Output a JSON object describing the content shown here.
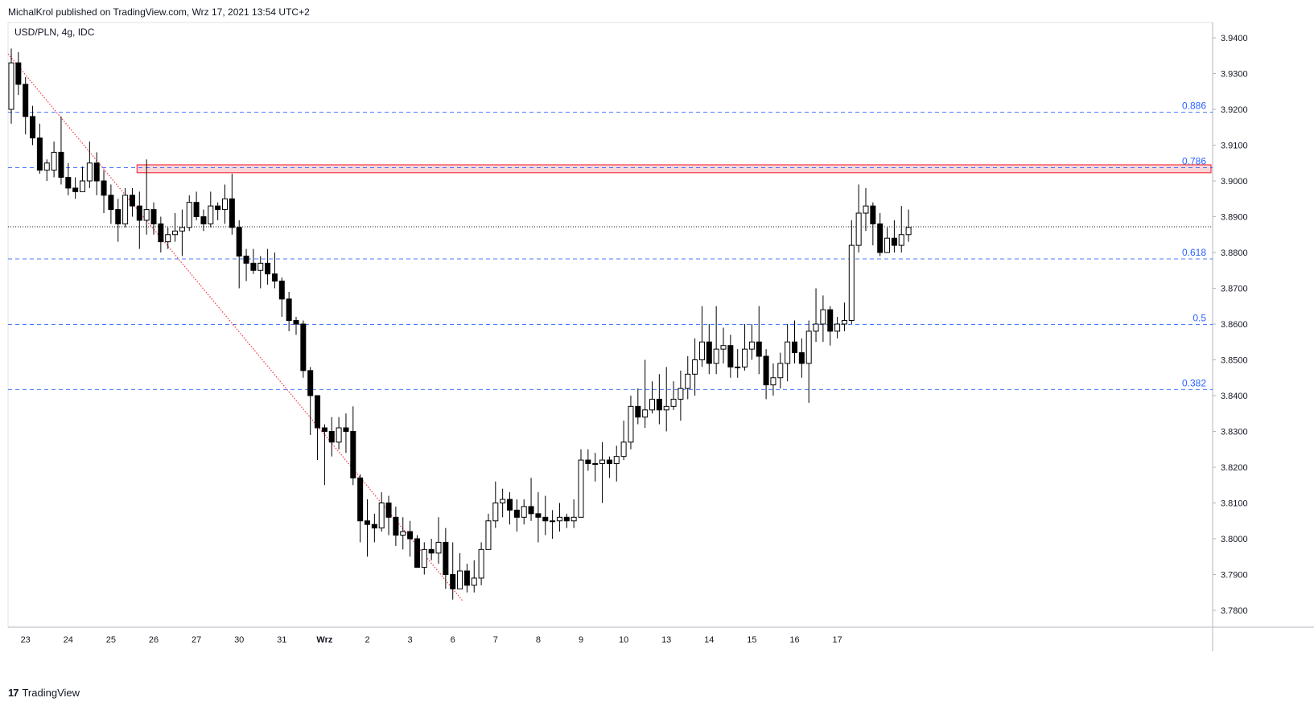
{
  "header": {
    "published": "MichalKrol published on TradingView.com, Wrz 17, 2021 13:54 UTC+2"
  },
  "footer": {
    "brand": "TradingView",
    "logo_text": "17"
  },
  "colors": {
    "up_body": "#ffffff",
    "down_body": "#000000",
    "wick": "#000000",
    "fib": "#2962ff",
    "zone": "#f23645",
    "trend": "#f23645"
  },
  "chart_data": {
    "type": "candlestick",
    "title": "USD/PLN, 4g, IDC",
    "ylim": [
      3.776,
      3.945
    ],
    "y_ticks": [
      "3.9400",
      "3.9300",
      "3.9200",
      "3.9100",
      "3.9000",
      "3.8900",
      "3.8800",
      "3.8700",
      "3.8600",
      "3.8500",
      "3.8400",
      "3.8300",
      "3.8200",
      "3.8100",
      "3.8000",
      "3.7900",
      "3.7800"
    ],
    "x_ticks": [
      {
        "label": "23",
        "i": 2
      },
      {
        "label": "24",
        "i": 8
      },
      {
        "label": "25",
        "i": 14
      },
      {
        "label": "26",
        "i": 20
      },
      {
        "label": "27",
        "i": 26
      },
      {
        "label": "30",
        "i": 32
      },
      {
        "label": "31",
        "i": 38
      },
      {
        "label": "Wrz",
        "i": 44
      },
      {
        "label": "2",
        "i": 50
      },
      {
        "label": "3",
        "i": 56
      },
      {
        "label": "6",
        "i": 62
      },
      {
        "label": "7",
        "i": 68
      },
      {
        "label": "8",
        "i": 74
      },
      {
        "label": "9",
        "i": 80
      },
      {
        "label": "10",
        "i": 86
      },
      {
        "label": "13",
        "i": 92
      },
      {
        "label": "14",
        "i": 98
      },
      {
        "label": "15",
        "i": 104
      },
      {
        "label": "16",
        "i": 110
      },
      {
        "label": "17",
        "i": 116
      }
    ],
    "fib_levels": [
      {
        "label": "0.886",
        "value": 3.9192
      },
      {
        "label": "0.786",
        "value": 3.9037
      },
      {
        "label": "0.618",
        "value": 3.8782
      },
      {
        "label": "0.5",
        "value": 3.8599
      },
      {
        "label": "0.382",
        "value": 3.8417
      }
    ],
    "last_price": 3.8872,
    "resistance_zone": {
      "top": 3.9045,
      "bottom": 3.9023,
      "from_i": 18
    },
    "trendline": {
      "from": [
        0,
        3.9355
      ],
      "to": [
        63,
        3.7825
      ]
    },
    "candles": [
      [
        3.92,
        3.933,
        3.937,
        3.916
      ],
      [
        3.933,
        3.927,
        3.936,
        3.924
      ],
      [
        3.927,
        3.918,
        3.929,
        3.913
      ],
      [
        3.918,
        3.912,
        3.921,
        3.91
      ],
      [
        3.912,
        3.903,
        3.916,
        3.902
      ],
      [
        3.903,
        3.905,
        3.906,
        3.9
      ],
      [
        3.903,
        3.908,
        3.911,
        3.901
      ],
      [
        3.908,
        3.901,
        3.918,
        3.899
      ],
      [
        3.901,
        3.898,
        3.905,
        3.896
      ],
      [
        3.898,
        3.897,
        3.901,
        3.895
      ],
      [
        3.897,
        3.9,
        3.904,
        3.897
      ],
      [
        3.9,
        3.905,
        3.911,
        3.898
      ],
      [
        3.905,
        3.9,
        3.908,
        3.896
      ],
      [
        3.9,
        3.896,
        3.903,
        3.891
      ],
      [
        3.896,
        3.892,
        3.899,
        3.888
      ],
      [
        3.892,
        3.888,
        3.895,
        3.883
      ],
      [
        3.888,
        3.896,
        3.898,
        3.887
      ],
      [
        3.896,
        3.893,
        3.898,
        3.89
      ],
      [
        3.893,
        3.889,
        3.897,
        3.881
      ],
      [
        3.889,
        3.892,
        3.906,
        3.885
      ],
      [
        3.892,
        3.888,
        3.894,
        3.885
      ],
      [
        3.888,
        3.883,
        3.89,
        3.88
      ],
      [
        3.883,
        3.885,
        3.887,
        3.881
      ],
      [
        3.885,
        3.886,
        3.891,
        3.883
      ],
      [
        3.886,
        3.887,
        3.892,
        3.879
      ],
      [
        3.887,
        3.894,
        3.896,
        3.886
      ],
      [
        3.894,
        3.89,
        3.897,
        3.889
      ],
      [
        3.89,
        3.888,
        3.892,
        3.886
      ],
      [
        3.888,
        3.893,
        3.897,
        3.887
      ],
      [
        3.893,
        3.892,
        3.894,
        3.889
      ],
      [
        3.892,
        3.895,
        3.899,
        3.888
      ],
      [
        3.895,
        3.887,
        3.902,
        3.885
      ],
      [
        3.887,
        3.879,
        3.889,
        3.87
      ],
      [
        3.879,
        3.877,
        3.881,
        3.872
      ],
      [
        3.877,
        3.875,
        3.881,
        3.874
      ],
      [
        3.875,
        3.877,
        3.879,
        3.87
      ],
      [
        3.877,
        3.874,
        3.881,
        3.871
      ],
      [
        3.874,
        3.872,
        3.88,
        3.87
      ],
      [
        3.872,
        3.867,
        3.873,
        3.862
      ],
      [
        3.867,
        3.861,
        3.869,
        3.858
      ],
      [
        3.861,
        3.86,
        3.862,
        3.857
      ],
      [
        3.86,
        3.847,
        3.861,
        3.845
      ],
      [
        3.847,
        3.84,
        3.848,
        3.829
      ],
      [
        3.84,
        3.831,
        3.84,
        3.822
      ],
      [
        3.831,
        3.83,
        3.832,
        3.815
      ],
      [
        3.83,
        3.827,
        3.834,
        3.823
      ],
      [
        3.827,
        3.831,
        3.834,
        3.825
      ],
      [
        3.831,
        3.83,
        3.835,
        3.824
      ],
      [
        3.83,
        3.817,
        3.837,
        3.815
      ],
      [
        3.817,
        3.805,
        3.818,
        3.799
      ],
      [
        3.805,
        3.804,
        3.811,
        3.795
      ],
      [
        3.804,
        3.803,
        3.807,
        3.799
      ],
      [
        3.803,
        3.81,
        3.813,
        3.802
      ],
      [
        3.81,
        3.806,
        3.812,
        3.801
      ],
      [
        3.806,
        3.801,
        3.809,
        3.798
      ],
      [
        3.801,
        3.802,
        3.806,
        3.797
      ],
      [
        3.802,
        3.8,
        3.805,
        3.795
      ],
      [
        3.8,
        3.792,
        3.801,
        3.792
      ],
      [
        3.792,
        3.797,
        3.799,
        3.79
      ],
      [
        3.797,
        3.796,
        3.8,
        3.794
      ],
      [
        3.796,
        3.799,
        3.806,
        3.793
      ],
      [
        3.799,
        3.79,
        3.803,
        3.786
      ],
      [
        3.79,
        3.786,
        3.799,
        3.783
      ],
      [
        3.786,
        3.791,
        3.796,
        3.786
      ],
      [
        3.791,
        3.787,
        3.793,
        3.785
      ],
      [
        3.787,
        3.789,
        3.794,
        3.785
      ],
      [
        3.789,
        3.797,
        3.799,
        3.787
      ],
      [
        3.797,
        3.805,
        3.807,
        3.797
      ],
      [
        3.805,
        3.81,
        3.816,
        3.803
      ],
      [
        3.81,
        3.811,
        3.814,
        3.806
      ],
      [
        3.811,
        3.808,
        3.813,
        3.804
      ],
      [
        3.808,
        3.806,
        3.811,
        3.802
      ],
      [
        3.806,
        3.809,
        3.811,
        3.804
      ],
      [
        3.809,
        3.807,
        3.817,
        3.805
      ],
      [
        3.807,
        3.806,
        3.813,
        3.799
      ],
      [
        3.806,
        3.805,
        3.812,
        3.801
      ],
      [
        3.805,
        3.805,
        3.808,
        3.8
      ],
      [
        3.805,
        3.806,
        3.81,
        3.802
      ],
      [
        3.806,
        3.805,
        3.807,
        3.803
      ],
      [
        3.805,
        3.806,
        3.811,
        3.803
      ],
      [
        3.806,
        3.822,
        3.825,
        3.806
      ],
      [
        3.822,
        3.821,
        3.825,
        3.819
      ],
      [
        3.821,
        3.821,
        3.824,
        3.816
      ],
      [
        3.821,
        3.822,
        3.827,
        3.81
      ],
      [
        3.822,
        3.821,
        3.823,
        3.817
      ],
      [
        3.821,
        3.823,
        3.826,
        3.816
      ],
      [
        3.823,
        3.827,
        3.833,
        3.822
      ],
      [
        3.827,
        3.837,
        3.84,
        3.825
      ],
      [
        3.837,
        3.834,
        3.842,
        3.832
      ],
      [
        3.834,
        3.836,
        3.85,
        3.831
      ],
      [
        3.836,
        3.839,
        3.844,
        3.835
      ],
      [
        3.839,
        3.836,
        3.846,
        3.832
      ],
      [
        3.836,
        3.837,
        3.848,
        3.83
      ],
      [
        3.837,
        3.839,
        3.844,
        3.836
      ],
      [
        3.839,
        3.842,
        3.847,
        3.833
      ],
      [
        3.842,
        3.846,
        3.851,
        3.839
      ],
      [
        3.846,
        3.85,
        3.856,
        3.84
      ],
      [
        3.85,
        3.855,
        3.865,
        3.848
      ],
      [
        3.855,
        3.849,
        3.86,
        3.846
      ],
      [
        3.849,
        3.853,
        3.865,
        3.846
      ],
      [
        3.853,
        3.854,
        3.859,
        3.849
      ],
      [
        3.854,
        3.848,
        3.857,
        3.845
      ],
      [
        3.848,
        3.848,
        3.853,
        3.845
      ],
      [
        3.848,
        3.853,
        3.86,
        3.847
      ],
      [
        3.853,
        3.855,
        3.86,
        3.85
      ],
      [
        3.855,
        3.851,
        3.865,
        3.846
      ],
      [
        3.851,
        3.843,
        3.853,
        3.839
      ],
      [
        3.843,
        3.845,
        3.849,
        3.84
      ],
      [
        3.845,
        3.849,
        3.852,
        3.842
      ],
      [
        3.849,
        3.855,
        3.86,
        3.844
      ],
      [
        3.855,
        3.852,
        3.861,
        3.849
      ],
      [
        3.852,
        3.849,
        3.856,
        3.845
      ],
      [
        3.849,
        3.858,
        3.861,
        3.838
      ],
      [
        3.858,
        3.86,
        3.87,
        3.855
      ],
      [
        3.86,
        3.864,
        3.868,
        3.855
      ],
      [
        3.864,
        3.858,
        3.865,
        3.854
      ],
      [
        3.858,
        3.86,
        3.862,
        3.856
      ],
      [
        3.86,
        3.861,
        3.866,
        3.858
      ],
      [
        3.861,
        3.882,
        3.889,
        3.86
      ],
      [
        3.882,
        3.891,
        3.899,
        3.88
      ],
      [
        3.891,
        3.893,
        3.898,
        3.886
      ],
      [
        3.893,
        3.888,
        3.894,
        3.882
      ],
      [
        3.888,
        3.88,
        3.891,
        3.879
      ],
      [
        3.88,
        3.884,
        3.887,
        3.88
      ],
      [
        3.884,
        3.882,
        3.889,
        3.88
      ],
      [
        3.882,
        3.885,
        3.893,
        3.88
      ],
      [
        3.885,
        3.887,
        3.892,
        3.883
      ]
    ]
  }
}
